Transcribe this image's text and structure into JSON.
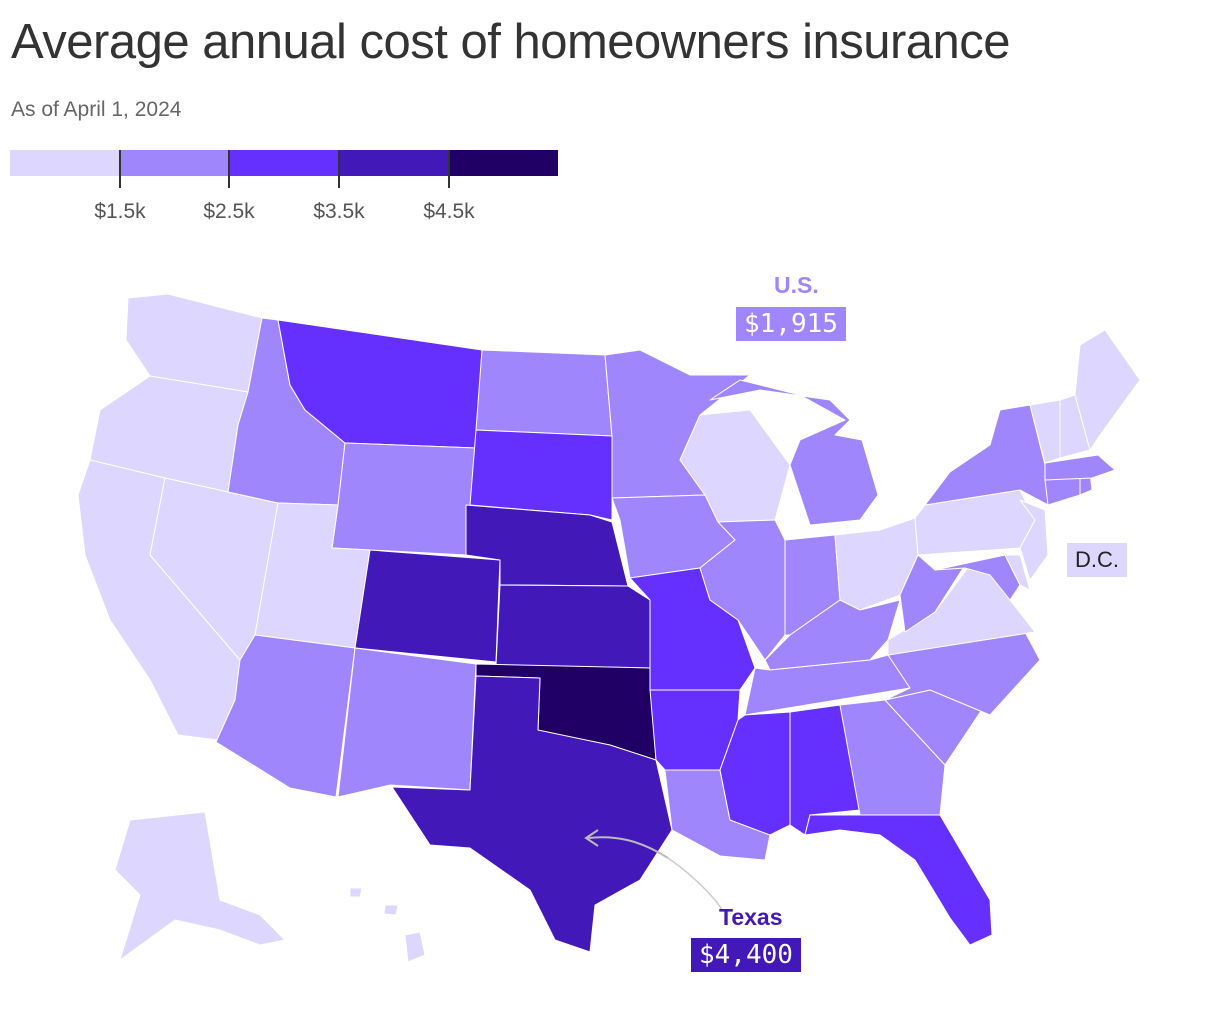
{
  "title": "Average annual cost of homeowners insurance",
  "subtitle": "As of April 1, 2024",
  "legend": {
    "colors": [
      "#ddd6fe",
      "#a086fd",
      "#6530fe",
      "#4218b8",
      "#200064"
    ],
    "thresholds": [
      "$1.5k",
      "$2.5k",
      "$3.5k",
      "$4.5k"
    ]
  },
  "callouts": {
    "us": {
      "name": "U.S.",
      "value": "$1,915",
      "color": "#a086fd"
    },
    "texas": {
      "name": "Texas",
      "value": "$4,400",
      "color": "#4218b8"
    },
    "dc": {
      "name": "D.C."
    }
  },
  "states": {
    "WA": 0,
    "OR": 0,
    "CA": 0,
    "NV": 0,
    "ID": 1,
    "MT": 2,
    "WY": 1,
    "UT": 0,
    "AZ": 1,
    "CO": 3,
    "NM": 1,
    "ND": 1,
    "SD": 2,
    "NE": 3,
    "KS": 3,
    "OK": 4,
    "TX": 3,
    "MN": 1,
    "IA": 1,
    "MO": 2,
    "AR": 2,
    "LA": 1,
    "WI": 0,
    "IL": 1,
    "MI": 1,
    "IN": 1,
    "OH": 0,
    "KY": 1,
    "TN": 1,
    "MS": 2,
    "AL": 2,
    "GA": 1,
    "FL": 2,
    "SC": 1,
    "NC": 1,
    "VA": 0,
    "WV": 1,
    "MD": 1,
    "DE": 0,
    "PA": 0,
    "NJ": 0,
    "NY": 1,
    "CT": 1,
    "RI": 1,
    "MA": 1,
    "VT": 0,
    "NH": 0,
    "ME": 0,
    "AK": 0,
    "HI": 0
  }
}
